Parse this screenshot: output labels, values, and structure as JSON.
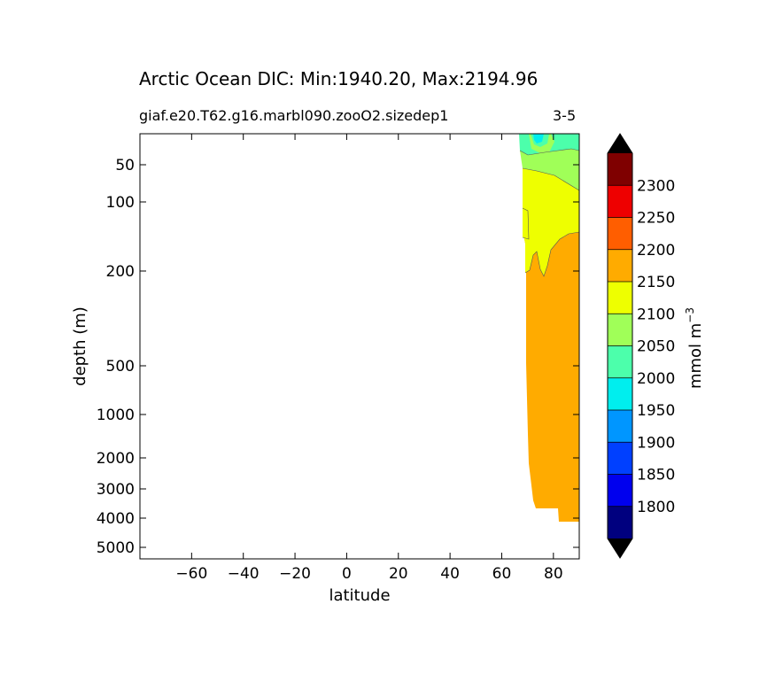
{
  "chart_data": {
    "type": "heatmap",
    "subtype": "filled-contour",
    "title": "Arctic Ocean DIC: Min:1940.20, Max:2194.96",
    "subtitle_left": "giaf.e20.T62.g16.marbl090.zooO2.sizedep1",
    "subtitle_right": "3-5",
    "xlabel": "latitude",
    "ylabel": "depth (m)",
    "xlim": [
      -80,
      90
    ],
    "x_ticks": [
      -60,
      -40,
      -20,
      0,
      20,
      40,
      60,
      80
    ],
    "x_tick_labels": [
      "−60",
      "−40",
      "−20",
      "0",
      "20",
      "40",
      "60",
      "80"
    ],
    "y_ticks": [
      50,
      100,
      200,
      500,
      1000,
      2000,
      3000,
      4000,
      5000
    ],
    "y_tick_labels": [
      "50",
      "100",
      "200",
      "500",
      "1000",
      "2000",
      "3000",
      "4000",
      "5000"
    ],
    "y_inverted": true,
    "colorbar": {
      "label": "mmol m",
      "label_superscript": "−3",
      "levels": [
        1775,
        1800,
        1850,
        1900,
        1950,
        2000,
        2050,
        2100,
        2150,
        2200,
        2250,
        2300,
        2325
      ],
      "tick_labels": [
        "1800",
        "1850",
        "1900",
        "1950",
        "2000",
        "2050",
        "2100",
        "2150",
        "2200",
        "2250",
        "2300"
      ],
      "colors": [
        "#00007f",
        "#0000ee",
        "#0040ff",
        "#0096ff",
        "#00eeee",
        "#4cffab",
        "#a0ff58",
        "#eeff00",
        "#ffab00",
        "#ff5e00",
        "#ee0000",
        "#7f0000"
      ],
      "under_color": "#000000",
      "over_color": "#000000",
      "extend": "both"
    },
    "regions": [
      {
        "range": "2150-2200",
        "color": "#ffab00",
        "description": "deep water from ~130 m to bottom, latitudes ~68 to 90"
      },
      {
        "range": "2100-2150",
        "color": "#eeff00",
        "description": "upper layer ~40-200 m, latitudes ~69 to 90"
      },
      {
        "range": "2050-2100",
        "color": "#a0ff58",
        "description": "near-surface ~15-75 m, latitudes ~71 to 90"
      },
      {
        "range": "2000-2050",
        "color": "#4cffab",
        "description": "surface patches near latitudes ~71-90"
      },
      {
        "range": "1950-2000",
        "color": "#00eeee",
        "description": "small surface pocket near latitude ~76"
      }
    ]
  }
}
